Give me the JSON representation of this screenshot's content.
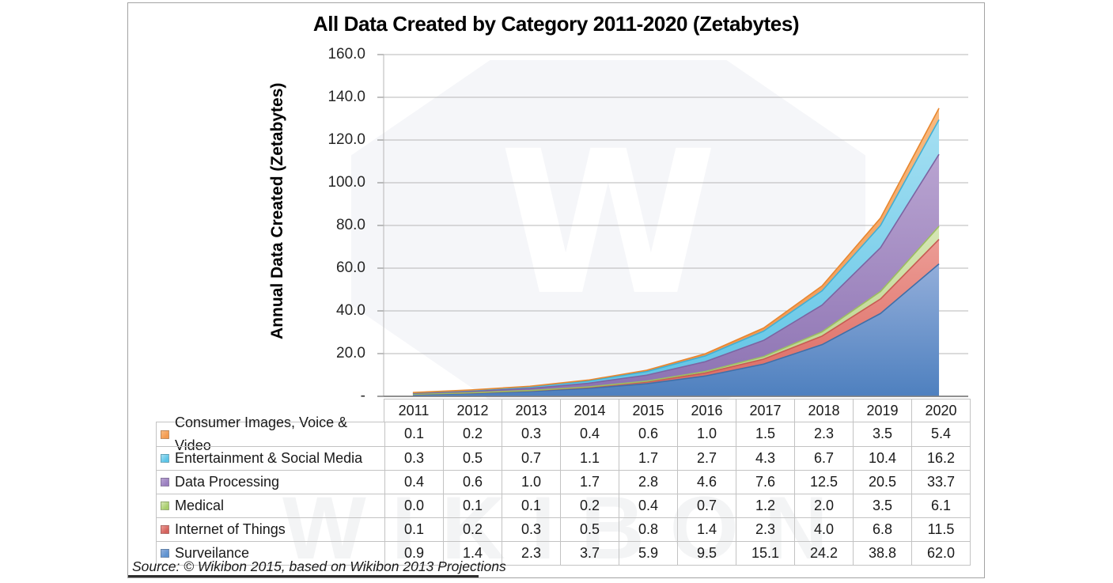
{
  "title": "All Data Created by Category 2011-2020 (Zetabytes)",
  "source_note": "Source: © Wikibon 2015, based on Wikibon 2013 Projections",
  "watermark": {
    "glyph": "W",
    "text": "WIKIBON"
  },
  "y_axis": {
    "title": "Annual Data Created (Zetabytes)",
    "tick_labels": [
      "160.0",
      "140.0",
      "120.0",
      "100.0",
      "80.0",
      "60.0",
      "40.0",
      "20.0",
      "-"
    ]
  },
  "chart_data": {
    "type": "area",
    "stacked": true,
    "title": "All Data Created by Category 2011-2020 (Zetabytes)",
    "xlabel": "",
    "ylabel": "Annual Data Created (Zetabytes)",
    "ylim": [
      0,
      160
    ],
    "ytick_interval": 20,
    "grid": true,
    "legend_position": "table-rows-left",
    "categories": [
      "2011",
      "2012",
      "2013",
      "2014",
      "2015",
      "2016",
      "2017",
      "2018",
      "2019",
      "2020"
    ],
    "series": [
      {
        "name": "Consumer Images, Voice & Video",
        "values": [
          0.1,
          0.2,
          0.3,
          0.4,
          0.6,
          1.0,
          1.5,
          2.3,
          3.5,
          5.4
        ],
        "color": "#F49B50",
        "gradient_top": "#F8BA80",
        "gradient_bottom": "#F0914B",
        "edge": "#E8872F"
      },
      {
        "name": "Entertainment & Social Media",
        "values": [
          0.3,
          0.5,
          0.7,
          1.1,
          1.7,
          2.7,
          4.3,
          6.7,
          10.4,
          16.2
        ],
        "color": "#5BC5E8",
        "gradient_top": "#A5DFF2",
        "gradient_bottom": "#5FC4E5",
        "edge": "#41AFD4"
      },
      {
        "name": "Data Processing",
        "values": [
          0.4,
          0.6,
          1.0,
          1.7,
          2.8,
          4.6,
          7.6,
          12.5,
          20.5,
          33.7
        ],
        "color": "#9A7FC0",
        "gradient_top": "#B9A4D1",
        "gradient_bottom": "#8C72B2",
        "edge": "#7C64A2"
      },
      {
        "name": "Medical",
        "values": [
          0.0,
          0.1,
          0.1,
          0.2,
          0.4,
          0.7,
          1.2,
          2.0,
          3.5,
          6.1
        ],
        "color": "#A8CE6C",
        "gradient_top": "#D6E6B4",
        "gradient_bottom": "#B7D387",
        "edge": "#9CBE61"
      },
      {
        "name": "Internet of Things",
        "values": [
          0.1,
          0.2,
          0.3,
          0.5,
          0.8,
          1.4,
          2.3,
          4.0,
          6.8,
          11.5
        ],
        "color": "#D4625D",
        "gradient_top": "#EC9C95",
        "gradient_bottom": "#DC6A62",
        "edge": "#C75B53"
      },
      {
        "name": "Surveilance",
        "values": [
          0.9,
          1.4,
          2.3,
          3.7,
          5.9,
          9.5,
          15.1,
          24.2,
          38.8,
          62.0
        ],
        "color": "#5E93D1",
        "gradient_top": "#93AEDA",
        "gradient_bottom": "#4E80BF",
        "edge": "#3F6FA8"
      }
    ],
    "stack_order_bottom_to_top": [
      "Surveilance",
      "Internet of Things",
      "Medical",
      "Data Processing",
      "Entertainment & Social Media",
      "Consumer Images, Voice & Video"
    ],
    "colors": {
      "gridline": "#b7b7b7",
      "zero_axis": "#808080",
      "table_border": "#c3c3c3"
    }
  }
}
